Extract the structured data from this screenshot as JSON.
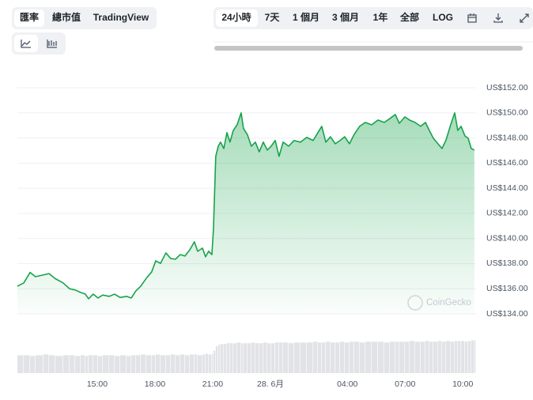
{
  "toolbar": {
    "views": [
      "匯率",
      "總市值",
      "TradingView"
    ],
    "ranges": [
      "24小時",
      "7天",
      "1 個月",
      "3 個月",
      "1年",
      "全部",
      "LOG"
    ]
  },
  "watermark": "CoinGecko",
  "chart_data": [
    {
      "type": "area",
      "color": "#16a34a",
      "grid": true,
      "xlim": [
        10.85,
        34.69
      ],
      "ylim": [
        134,
        152
      ],
      "xticks": [
        {
          "value": 15,
          "label": "15:00"
        },
        {
          "value": 18,
          "label": "18:00"
        },
        {
          "value": 21,
          "label": "21:00"
        },
        {
          "value": 24,
          "label": "28. 6月"
        },
        {
          "value": 28,
          "label": "04:00"
        },
        {
          "value": 31,
          "label": "07:00"
        },
        {
          "value": 34,
          "label": "10:00"
        }
      ],
      "yticks": [
        {
          "value": 134,
          "label": "US$134.00"
        },
        {
          "value": 136,
          "label": "US$136.00"
        },
        {
          "value": 138,
          "label": "US$138.00"
        },
        {
          "value": 140,
          "label": "US$140.00"
        },
        {
          "value": 142,
          "label": "US$142.00"
        },
        {
          "value": 144,
          "label": "US$144.00"
        },
        {
          "value": 146,
          "label": "US$146.00"
        },
        {
          "value": 148,
          "label": "US$148.00"
        },
        {
          "value": 150,
          "label": "US$150.00"
        },
        {
          "value": 152,
          "label": "US$152.00"
        }
      ],
      "x": [
        10.85,
        11.18,
        11.51,
        11.79,
        12.2,
        12.49,
        12.82,
        13.23,
        13.56,
        13.85,
        14.14,
        14.38,
        14.55,
        14.79,
        15.04,
        15.29,
        15.62,
        15.9,
        16.19,
        16.52,
        16.77,
        17.01,
        17.26,
        17.55,
        17.83,
        18.04,
        18.29,
        18.57,
        18.82,
        19.07,
        19.31,
        19.56,
        19.81,
        20.05,
        20.22,
        20.47,
        20.63,
        20.79,
        20.96,
        21.04,
        21.16,
        21.29,
        21.41,
        21.58,
        21.74,
        21.9,
        22.07,
        22.27,
        22.48,
        22.6,
        22.81,
        23.01,
        23.22,
        23.42,
        23.63,
        23.84,
        24.04,
        24.25,
        24.45,
        24.66,
        24.95,
        25.23,
        25.56,
        25.89,
        26.22,
        26.47,
        26.67,
        26.88,
        27.12,
        27.37,
        27.62,
        27.86,
        28.11,
        28.36,
        28.64,
        28.93,
        29.26,
        29.59,
        29.92,
        30.21,
        30.49,
        30.7,
        30.99,
        31.23,
        31.52,
        31.81,
        32.06,
        32.26,
        32.47,
        32.71,
        32.92,
        33.12,
        33.37,
        33.58,
        33.74,
        33.91,
        34.11,
        34.28,
        34.44,
        34.6
      ],
      "values": [
        136.2,
        136.46,
        137.3,
        136.96,
        137.1,
        137.2,
        136.8,
        136.46,
        136.0,
        135.9,
        135.7,
        135.57,
        135.2,
        135.57,
        135.26,
        135.5,
        135.39,
        135.57,
        135.3,
        135.39,
        135.26,
        135.83,
        136.2,
        136.83,
        137.34,
        138.22,
        138.02,
        138.85,
        138.4,
        138.35,
        138.72,
        138.6,
        139.1,
        139.73,
        138.98,
        139.23,
        138.54,
        138.98,
        138.72,
        140.74,
        146.54,
        147.35,
        147.67,
        147.16,
        148.43,
        147.67,
        148.6,
        149.05,
        150.0,
        148.76,
        148.25,
        147.35,
        147.67,
        146.9,
        147.67,
        147.04,
        147.35,
        147.8,
        146.54,
        147.67,
        147.35,
        147.8,
        147.67,
        148.05,
        147.8,
        148.43,
        148.93,
        147.67,
        148.1,
        147.54,
        147.8,
        148.1,
        147.54,
        148.3,
        148.93,
        149.24,
        149.05,
        149.43,
        149.24,
        149.55,
        149.87,
        149.17,
        149.68,
        149.43,
        149.24,
        148.93,
        149.24,
        148.6,
        147.98,
        147.54,
        147.16,
        147.8,
        149.05,
        150.0,
        148.6,
        148.93,
        148.17,
        147.98,
        147.16,
        147.04
      ]
    },
    {
      "type": "bar",
      "color": "#e2e3e7",
      "ylim": [
        0,
        55
      ],
      "values": [
        24,
        24,
        23,
        24,
        25,
        24,
        23,
        24,
        24,
        23,
        24,
        23,
        24,
        24,
        23,
        24,
        24,
        23,
        24,
        23,
        24,
        24,
        25,
        24,
        24,
        25,
        24,
        24,
        25,
        24,
        25,
        24,
        25,
        25,
        24,
        25,
        26,
        25,
        26,
        30,
        36,
        38,
        39,
        39,
        40,
        40,
        40,
        41,
        40,
        40,
        40,
        41,
        40,
        40,
        41,
        40,
        40,
        41,
        41,
        41,
        40,
        41,
        41,
        41,
        42,
        41,
        41,
        42,
        41,
        41,
        42,
        41,
        42,
        42,
        41,
        42,
        42,
        42,
        41,
        42,
        42,
        42,
        42,
        43,
        42,
        42,
        43,
        42,
        42,
        43,
        42,
        43,
        42,
        43,
        43,
        43,
        42,
        43,
        44,
        44
      ]
    }
  ]
}
